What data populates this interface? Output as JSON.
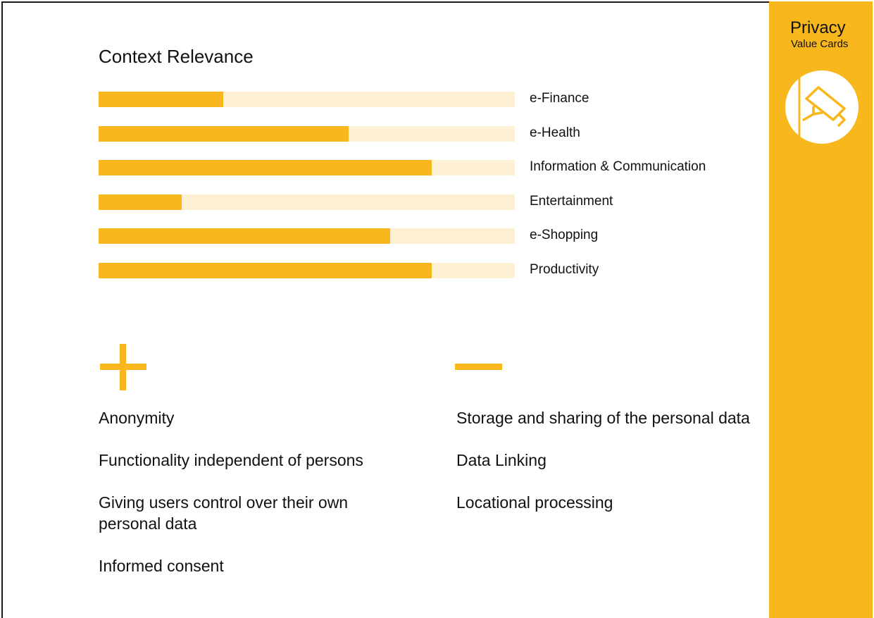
{
  "brand": {
    "title": "Privacy",
    "subtitle": "Value Cards",
    "icon": "security-camera-icon",
    "accent_color": "#f9b71e",
    "track_color": "#fef0d2"
  },
  "context": {
    "heading": "Context Relevance",
    "items": [
      {
        "label": "e-Finance",
        "relevance": 0.3
      },
      {
        "label": "e-Health",
        "relevance": 0.6
      },
      {
        "label": "Information & Communication",
        "relevance": 0.8
      },
      {
        "label": "Entertainment",
        "relevance": 0.2
      },
      {
        "label": "e-Shopping",
        "relevance": 0.7
      },
      {
        "label": "Productivity",
        "relevance": 0.8
      }
    ]
  },
  "positives": {
    "icon": "plus-icon",
    "items": [
      "Anonymity",
      "Functionality independent of persons",
      "Giving users control over their own personal data",
      "Informed consent"
    ]
  },
  "negatives": {
    "icon": "minus-icon",
    "items": [
      "Storage and sharing of the personal data",
      "Data Linking",
      "Locational processing"
    ]
  }
}
